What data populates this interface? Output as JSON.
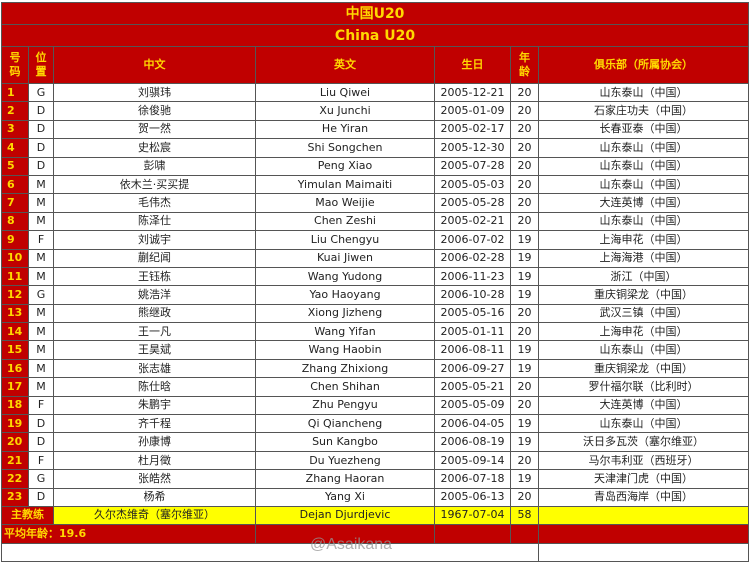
{
  "title_cn": "中国U20",
  "title_en": "China U20",
  "headers": {
    "num": "号码",
    "pos": "位置",
    "cn": "中文",
    "en": "英文",
    "birth": "生日",
    "age": "年龄",
    "club": "俱乐部（所属协会）"
  },
  "players": [
    {
      "num": "1",
      "pos": "G",
      "cn": "刘骐玮",
      "en": "Liu Qiwei",
      "birth": "2005-12-21",
      "age": "20",
      "club": "山东泰山（中国）"
    },
    {
      "num": "2",
      "pos": "D",
      "cn": "徐俊驰",
      "en": "Xu Junchi",
      "birth": "2005-01-09",
      "age": "20",
      "club": "石家庄功夫（中国）"
    },
    {
      "num": "3",
      "pos": "D",
      "cn": "贺一然",
      "en": "He Yiran",
      "birth": "2005-02-17",
      "age": "20",
      "club": "长春亚泰（中国）"
    },
    {
      "num": "4",
      "pos": "D",
      "cn": "史松宸",
      "en": "Shi Songchen",
      "birth": "2005-12-30",
      "age": "20",
      "club": "山东泰山（中国）"
    },
    {
      "num": "5",
      "pos": "D",
      "cn": "彭啸",
      "en": "Peng Xiao",
      "birth": "2005-07-28",
      "age": "20",
      "club": "山东泰山（中国）"
    },
    {
      "num": "6",
      "pos": "M",
      "cn": "依木兰·买买提",
      "en": "Yimulan Maimaiti",
      "birth": "2005-05-03",
      "age": "20",
      "club": "山东泰山（中国）"
    },
    {
      "num": "7",
      "pos": "M",
      "cn": "毛伟杰",
      "en": "Mao Weijie",
      "birth": "2005-05-28",
      "age": "20",
      "club": "大连英博（中国）"
    },
    {
      "num": "8",
      "pos": "M",
      "cn": "陈泽仕",
      "en": "Chen Zeshi",
      "birth": "2005-02-21",
      "age": "20",
      "club": "山东泰山（中国）"
    },
    {
      "num": "9",
      "pos": "F",
      "cn": "刘诚宇",
      "en": "Liu Chengyu",
      "birth": "2006-07-02",
      "age": "19",
      "club": "上海申花（中国）"
    },
    {
      "num": "10",
      "pos": "M",
      "cn": "蒯纪闻",
      "en": "Kuai Jiwen",
      "birth": "2006-02-28",
      "age": "19",
      "club": "上海海港（中国）"
    },
    {
      "num": "11",
      "pos": "M",
      "cn": "王钰栋",
      "en": "Wang Yudong",
      "birth": "2006-11-23",
      "age": "19",
      "club": "浙江（中国）"
    },
    {
      "num": "12",
      "pos": "G",
      "cn": "姚浩洋",
      "en": "Yao Haoyang",
      "birth": "2006-10-28",
      "age": "19",
      "club": "重庆铜梁龙（中国）"
    },
    {
      "num": "13",
      "pos": "M",
      "cn": "熊继政",
      "en": "Xiong Jizheng",
      "birth": "2005-05-16",
      "age": "20",
      "club": "武汉三镇（中国）"
    },
    {
      "num": "14",
      "pos": "M",
      "cn": "王一凡",
      "en": "Wang Yifan",
      "birth": "2005-01-11",
      "age": "20",
      "club": "上海申花（中国）"
    },
    {
      "num": "15",
      "pos": "M",
      "cn": "王昊斌",
      "en": "Wang Haobin",
      "birth": "2006-08-11",
      "age": "19",
      "club": "山东泰山（中国）"
    },
    {
      "num": "16",
      "pos": "M",
      "cn": "张志雄",
      "en": "Zhang Zhixiong",
      "birth": "2006-09-27",
      "age": "19",
      "club": "重庆铜梁龙（中国）"
    },
    {
      "num": "17",
      "pos": "M",
      "cn": "陈仕晗",
      "en": "Chen Shihan",
      "birth": "2005-05-21",
      "age": "20",
      "club": "罗什福尔联（比利时）"
    },
    {
      "num": "18",
      "pos": "F",
      "cn": "朱鹏宇",
      "en": "Zhu Pengyu",
      "birth": "2005-05-09",
      "age": "20",
      "club": "大连英博（中国）"
    },
    {
      "num": "19",
      "pos": "D",
      "cn": "齐千程",
      "en": "Qi Qiancheng",
      "birth": "2006-04-05",
      "age": "19",
      "club": "山东泰山（中国）"
    },
    {
      "num": "20",
      "pos": "D",
      "cn": "孙康博",
      "en": "Sun Kangbo",
      "birth": "2006-08-19",
      "age": "19",
      "club": "沃日多瓦茨（塞尔维亚）"
    },
    {
      "num": "21",
      "pos": "F",
      "cn": "杜月徵",
      "en": "Du Yuezheng",
      "birth": "2005-09-14",
      "age": "20",
      "club": "马尔韦利亚（西班牙）"
    },
    {
      "num": "22",
      "pos": "G",
      "cn": "张皓然",
      "en": "Zhang Haoran",
      "birth": "2006-07-18",
      "age": "19",
      "club": "天津津门虎（中国）"
    },
    {
      "num": "23",
      "pos": "D",
      "cn": "杨希",
      "en": "Yang Xi",
      "birth": "2005-06-13",
      "age": "20",
      "club": "青岛西海岸（中国）"
    }
  ],
  "coach": {
    "label": "主教练",
    "cn": "久尔杰维奇（塞尔维亚）",
    "en": "Dejan Djurdjevic",
    "birth": "1967-07-04",
    "age": "58",
    "club": ""
  },
  "average_age": "平均年龄：19.6",
  "watermark": "@Asaikana",
  "colors": {
    "header_bg": "#c00000",
    "header_text": "#ffd800",
    "coach_bg": "#ffff00"
  }
}
